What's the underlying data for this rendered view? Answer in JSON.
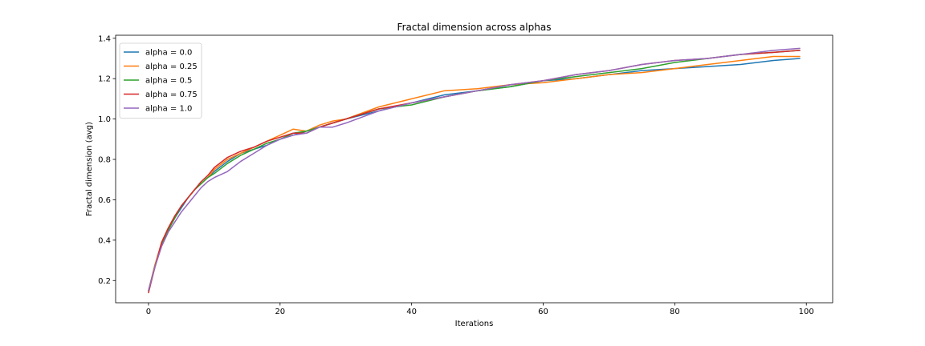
{
  "chart_data": {
    "type": "line",
    "title": "Fractal dimension across alphas",
    "xlabel": "Iterations",
    "ylabel": "Fractal dimension (avg)",
    "xlim": [
      -5,
      104
    ],
    "ylim": [
      0.09,
      1.415
    ],
    "xticks": [
      0,
      20,
      40,
      60,
      80,
      100
    ],
    "yticks": [
      0.2,
      0.4,
      0.6,
      0.8,
      1.0,
      1.2,
      1.4
    ],
    "xtick_labels": [
      "0",
      "20",
      "40",
      "60",
      "80",
      "100"
    ],
    "ytick_labels": [
      "0.2",
      "0.4",
      "0.6",
      "0.8",
      "1.0",
      "1.2",
      "1.4"
    ],
    "grid": false,
    "legend_position": "top-left",
    "x": [
      0,
      1,
      2,
      3,
      4,
      5,
      6,
      7,
      8,
      9,
      10,
      12,
      14,
      16,
      18,
      20,
      22,
      24,
      26,
      28,
      30,
      35,
      40,
      45,
      50,
      55,
      60,
      65,
      70,
      75,
      80,
      85,
      90,
      95,
      99
    ],
    "series": [
      {
        "name": "alpha = 0.0",
        "color": "#1f77b4",
        "values": [
          0.15,
          0.28,
          0.38,
          0.45,
          0.51,
          0.56,
          0.61,
          0.65,
          0.68,
          0.71,
          0.74,
          0.79,
          0.83,
          0.85,
          0.87,
          0.9,
          0.92,
          0.94,
          0.96,
          0.98,
          1.0,
          1.04,
          1.08,
          1.12,
          1.14,
          1.16,
          1.19,
          1.2,
          1.22,
          1.24,
          1.25,
          1.26,
          1.27,
          1.29,
          1.3
        ]
      },
      {
        "name": "alpha = 0.25",
        "color": "#ff7f0e",
        "values": [
          0.15,
          0.28,
          0.39,
          0.46,
          0.52,
          0.57,
          0.61,
          0.65,
          0.68,
          0.71,
          0.75,
          0.8,
          0.83,
          0.86,
          0.89,
          0.92,
          0.95,
          0.94,
          0.97,
          0.99,
          1.0,
          1.06,
          1.1,
          1.14,
          1.15,
          1.17,
          1.18,
          1.2,
          1.22,
          1.23,
          1.25,
          1.27,
          1.29,
          1.31,
          1.31
        ]
      },
      {
        "name": "alpha = 0.5",
        "color": "#2ca02c",
        "values": [
          0.15,
          0.27,
          0.38,
          0.45,
          0.51,
          0.57,
          0.61,
          0.65,
          0.68,
          0.71,
          0.73,
          0.78,
          0.82,
          0.85,
          0.88,
          0.9,
          0.93,
          0.94,
          0.96,
          0.98,
          1.0,
          1.05,
          1.07,
          1.11,
          1.14,
          1.16,
          1.19,
          1.21,
          1.23,
          1.25,
          1.28,
          1.3,
          1.32,
          1.33,
          1.34
        ]
      },
      {
        "name": "alpha = 0.75",
        "color": "#d62728",
        "values": [
          0.14,
          0.27,
          0.39,
          0.46,
          0.52,
          0.57,
          0.61,
          0.65,
          0.69,
          0.72,
          0.76,
          0.81,
          0.84,
          0.86,
          0.89,
          0.91,
          0.93,
          0.93,
          0.96,
          0.98,
          1.0,
          1.05,
          1.08,
          1.11,
          1.14,
          1.17,
          1.19,
          1.22,
          1.24,
          1.27,
          1.29,
          1.3,
          1.32,
          1.33,
          1.34
        ]
      },
      {
        "name": "alpha = 1.0",
        "color": "#9467bd",
        "values": [
          0.15,
          0.27,
          0.37,
          0.44,
          0.49,
          0.54,
          0.58,
          0.62,
          0.66,
          0.69,
          0.71,
          0.74,
          0.79,
          0.83,
          0.87,
          0.9,
          0.92,
          0.93,
          0.96,
          0.96,
          0.98,
          1.04,
          1.08,
          1.11,
          1.14,
          1.17,
          1.19,
          1.22,
          1.24,
          1.27,
          1.29,
          1.3,
          1.32,
          1.34,
          1.35
        ]
      }
    ]
  }
}
